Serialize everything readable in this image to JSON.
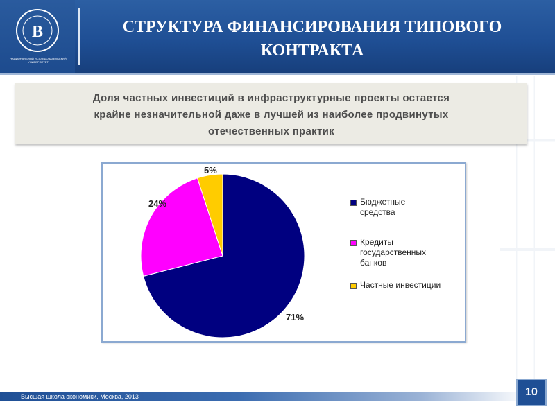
{
  "header": {
    "title_line1": "СТРУКТУРА ФИНАНСИРОВАНИЯ ТИПОВОГО",
    "title_line2": "КОНТРАКТА",
    "logo_caption": "НАЦИОНАЛЬНЫЙ ИССЛЕДОВАТЕЛЬСКИЙ УНИВЕРСИТЕТ",
    "logo_text": "ВЫСШАЯ ШКОЛА ЭКОНОМИКИ"
  },
  "subtitle": {
    "line1": "Доля частных инвестиций в инфраструктурные проекты остается",
    "line2": "крайне незначительной даже в лучшей из наиболее продвинутых",
    "line3": "отечественных  практик"
  },
  "chart_data": {
    "type": "pie",
    "title": "",
    "slices": [
      {
        "label": "Бюджетные средства",
        "value": 71,
        "display": "71%",
        "color": "#000080"
      },
      {
        "label": "Кредиты государственных банков",
        "value": 24,
        "display": "24%",
        "color": "#ff00ff"
      },
      {
        "label": "Частные инвестиции",
        "value": 5,
        "display": "5%",
        "color": "#ffcc00"
      }
    ],
    "legend": {
      "placement": "right",
      "items": [
        "Бюджетные средства",
        "Кредиты государственных банков",
        "Частные инвестиции"
      ]
    }
  },
  "footer": {
    "text": "Высшая школа экономики, Москва, 2013",
    "page_number": "10"
  },
  "colors": {
    "header_blue": "#1f4f95",
    "subtitle_bg": "#ecebe4",
    "frame_border": "#8ba9d1"
  }
}
